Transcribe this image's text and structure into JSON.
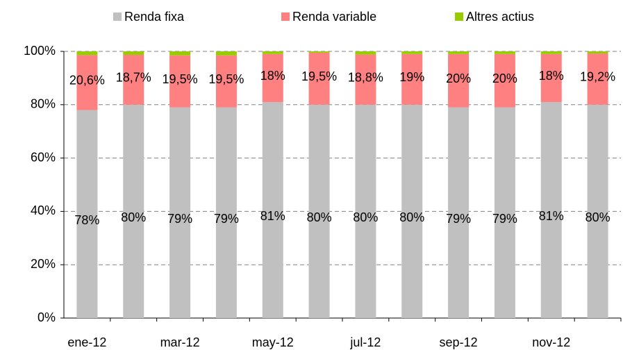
{
  "chart_data": {
    "type": "stacked_bar",
    "categories": [
      "ene-12",
      null,
      "mar-12",
      null,
      "may-12",
      null,
      "jul-12",
      null,
      "sep-12",
      null,
      "nov-12",
      null
    ],
    "series": [
      {
        "name": "Renda fixa",
        "color": "#c0c0c0",
        "values": [
          78,
          80,
          79,
          79,
          81,
          80,
          80,
          80,
          79,
          79,
          81,
          80
        ],
        "value_labels": [
          "78%",
          "80%",
          "79%",
          "79%",
          "81%",
          "80%",
          "80%",
          "80%",
          "79%",
          "79%",
          "81%",
          "80%"
        ]
      },
      {
        "name": "Renda variable",
        "color": "#ff8080",
        "values": [
          20.6,
          18.7,
          19.5,
          19.5,
          18,
          19.5,
          18.8,
          19,
          20,
          20,
          18,
          19.2
        ],
        "value_labels": [
          "20,6%",
          "18,7%",
          "19,5%",
          "19,5%",
          "18%",
          "19,5%",
          "18,8%",
          "19%",
          "20%",
          "20%",
          "18%",
          "19,2%"
        ]
      },
      {
        "name": "Altres actius",
        "color": "#99cc00",
        "values": [
          1.4,
          1.3,
          1.5,
          1.5,
          1,
          0.5,
          1.2,
          1,
          1,
          1,
          1,
          0.8
        ]
      }
    ],
    "ylim": [
      0,
      100
    ],
    "yticks": [
      {
        "value": 0,
        "label": "0%"
      },
      {
        "value": 20,
        "label": "20%"
      },
      {
        "value": 40,
        "label": "40%"
      },
      {
        "value": 60,
        "label": "60%"
      },
      {
        "value": 80,
        "label": "80%"
      },
      {
        "value": 100,
        "label": "100%"
      }
    ],
    "grid": true,
    "legend": "top"
  }
}
